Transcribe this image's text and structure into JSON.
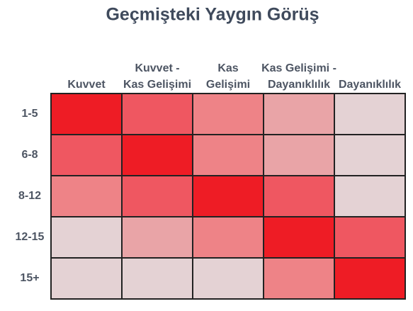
{
  "chart_data": {
    "type": "heatmap",
    "title": "Geçmişteki Yaygın Görüş",
    "categories": [
      [
        "Kuvvet"
      ],
      [
        "Kuvvet -",
        "Kas Gelişimi"
      ],
      [
        "Kas",
        "Gelişimi"
      ],
      [
        "Kas Gelişimi -",
        "Dayanıklılık"
      ],
      [
        "Dayanıklılık"
      ]
    ],
    "rows": [
      "1-5",
      "6-8",
      "8-12",
      "12-15",
      "15+"
    ],
    "colors": [
      [
        "#ee1c25",
        "#ef5761",
        "#ee8387",
        "#e9a4a7",
        "#e4d2d4"
      ],
      [
        "#ef5761",
        "#ee1c25",
        "#ee8387",
        "#e9a4a7",
        "#e4d2d4"
      ],
      [
        "#ee8387",
        "#ef5761",
        "#ee1c25",
        "#ef5761",
        "#e4d2d4"
      ],
      [
        "#e4d2d4",
        "#e9a4a7",
        "#ee8387",
        "#ee1c25",
        "#ef5761"
      ],
      [
        "#e4d2d4",
        "#e4d2d4",
        "#e4d2d4",
        "#ee8387",
        "#ee1c25"
      ]
    ]
  }
}
